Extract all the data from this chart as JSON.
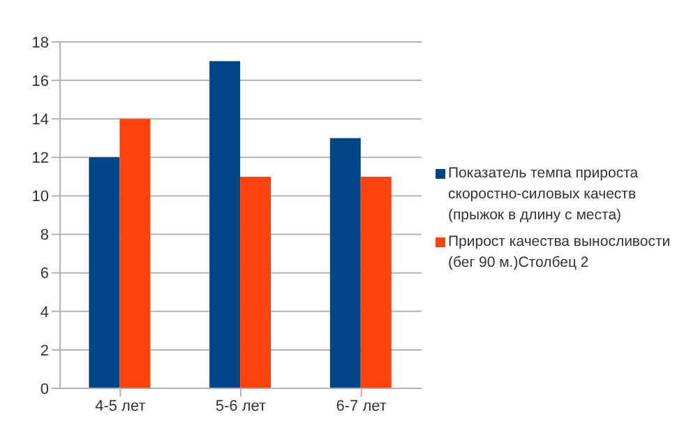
{
  "chart_data": {
    "type": "bar",
    "categories": [
      "4-5 лет",
      "5-6 лет",
      "6-7 лет"
    ],
    "series": [
      {
        "name": "Показатель темпа прироста скоростно-силовых качеств (прыжок в длину с места)",
        "color": "#004586",
        "values": [
          12,
          17,
          13
        ]
      },
      {
        "name": "Прирост качества выносливости (бег 90 м.)Столбец 2",
        "color": "#ff420e",
        "values": [
          14,
          11,
          11
        ]
      }
    ],
    "ylim": [
      0,
      18
    ],
    "yticks": [
      0,
      2,
      4,
      6,
      8,
      10,
      12,
      14,
      16,
      18
    ],
    "grid": "y",
    "legend": "right"
  }
}
